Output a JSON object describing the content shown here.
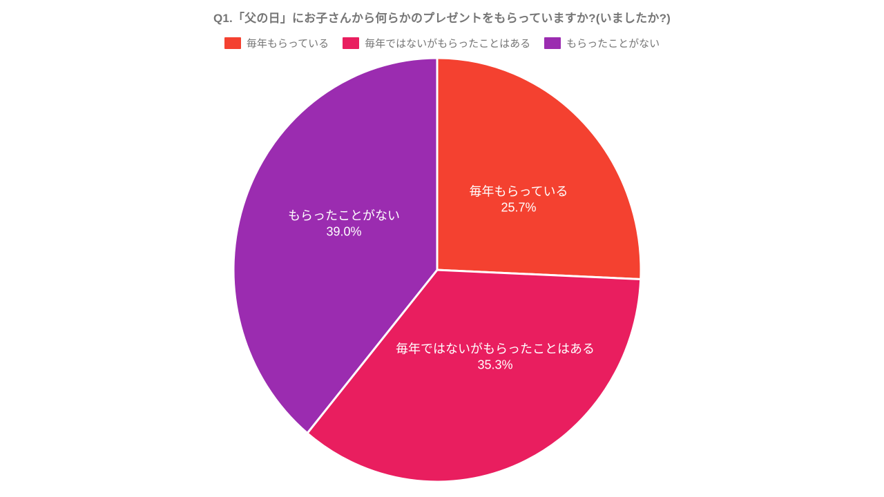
{
  "title": "Q1.「父の日」にお子さんから何らかのプレゼントをもらっていますか?(いましたか?)",
  "colors": {
    "background": "#FFFFFF",
    "title_text": "#757575",
    "legend_text": "#757575",
    "slice_label_text": "#FFFFFF",
    "separator": "#FFFFFF"
  },
  "legend": {
    "position": "top-center",
    "items": [
      {
        "label": "毎年もらっている",
        "color": "#F44130"
      },
      {
        "label": "毎年ではないがもらったことはある",
        "color": "#E91E5F"
      },
      {
        "label": "もらったことがない",
        "color": "#9B2CB0"
      }
    ]
  },
  "chart_data": {
    "type": "pie",
    "title": "Q1.「父の日」にお子さんから何らかのプレゼントをもらっていますか?(いましたか?)",
    "unit": "%",
    "start_angle_deg": 0,
    "direction": "clockwise",
    "labels_inside": true,
    "separator_color": "#FFFFFF",
    "slices": [
      {
        "label": "毎年もらっている",
        "value_percent": 25.7,
        "display": "25.7%",
        "color": "#F44130"
      },
      {
        "label": "毎年ではないがもらったことはある",
        "value_percent": 35.3,
        "display": "35.3%",
        "color": "#E91E5F"
      },
      {
        "label": "もらったことがない",
        "value_percent": 39.0,
        "display": "39.0%",
        "color": "#9B2CB0"
      }
    ]
  }
}
